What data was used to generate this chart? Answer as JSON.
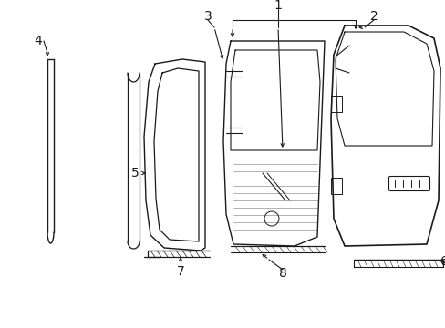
{
  "bg_color": "#ffffff",
  "line_color": "#1a1a1a",
  "fig_width": 4.89,
  "fig_height": 3.6,
  "dpi": 100,
  "label_fontsize": 9
}
